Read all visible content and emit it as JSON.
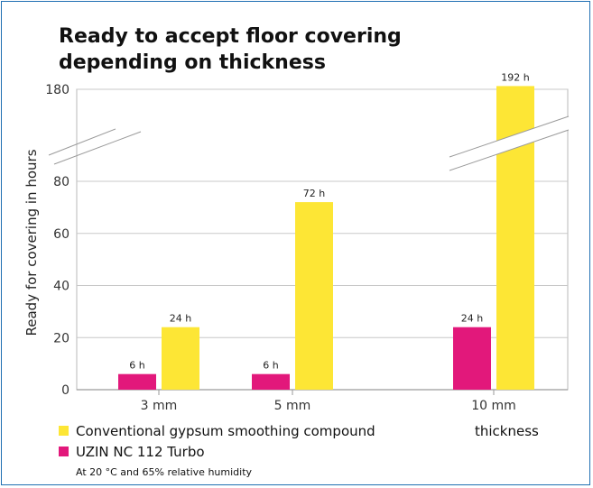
{
  "chart_data": {
    "type": "bar",
    "title": "Ready to accept floor covering depending on thickness",
    "title_lines": [
      "Ready to accept floor covering",
      "depending on thickness"
    ],
    "ylabel": "Ready for covering in hours",
    "xlabel": "thickness",
    "categories": [
      "3 mm",
      "5 mm",
      "10 mm"
    ],
    "y_ticks": [
      0,
      20,
      40,
      60,
      80,
      180
    ],
    "ylim": [
      0,
      180
    ],
    "axis_break": {
      "from": 80,
      "to": 180
    },
    "series": [
      {
        "name": "UZIN NC 112 Turbo",
        "color": "#e2187b",
        "values": [
          6,
          6,
          24
        ],
        "labels": [
          "6 h",
          "6 h",
          "24 h"
        ]
      },
      {
        "name": "Conventional gypsum smoothing compound",
        "color": "#fde635",
        "values": [
          24,
          72,
          192
        ],
        "labels": [
          "24 h",
          "72 h",
          "192 h"
        ]
      }
    ],
    "legend": [
      {
        "label": "Conventional gypsum smoothing compound",
        "color": "#fde635"
      },
      {
        "label": "UZIN NC 112 Turbo",
        "color": "#e2187b"
      }
    ],
    "note": "At 20 °C and 65% relative humidity",
    "grid": true,
    "legend_position": "bottom-left",
    "frame_color": "#1f6fb2"
  }
}
